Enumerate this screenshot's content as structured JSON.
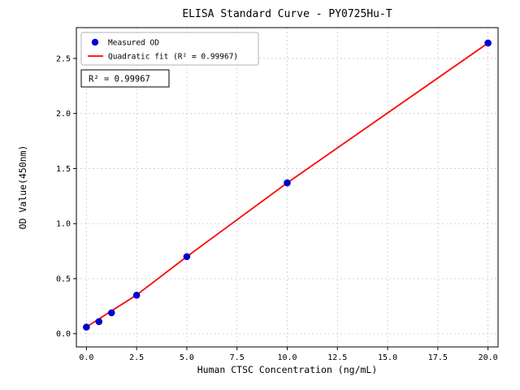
{
  "chart_data": {
    "type": "scatter",
    "title": "ELISA Standard Curve - PY0725Hu-T",
    "xlabel": "Human CTSC Concentration (ng/mL)",
    "ylabel": "OD Value(450nm)",
    "xlim": [
      -0.5,
      20.5
    ],
    "ylim": [
      -0.12,
      2.78
    ],
    "xticks": [
      0.0,
      2.5,
      5.0,
      7.5,
      10.0,
      12.5,
      15.0,
      17.5,
      20.0
    ],
    "yticks": [
      0.0,
      0.5,
      1.0,
      1.5,
      2.0,
      2.5
    ],
    "grid": true,
    "legend_position": "upper-left",
    "annotation": "R² = 0.99967",
    "colors": {
      "measured": "#0000cd",
      "fit": "#ff0000",
      "grid": "#c9c9c9",
      "axis": "#000000",
      "legend_border": "#b3b3b3",
      "background": "#ffffff"
    },
    "series": [
      {
        "name": "Measured OD",
        "type": "scatter",
        "color": "#0000cd",
        "points": [
          [
            0,
            0.06
          ],
          [
            0.625,
            0.11
          ],
          [
            1.25,
            0.19
          ],
          [
            2.5,
            0.35
          ],
          [
            5,
            0.7
          ],
          [
            10,
            1.37
          ],
          [
            20,
            2.64
          ]
        ]
      },
      {
        "name": "Quadratic fit (R² = 0.99967)",
        "type": "line",
        "color": "#ff0000",
        "points": [
          [
            0,
            0.062
          ],
          [
            2.5,
            0.352
          ],
          [
            5,
            0.7
          ],
          [
            10,
            1.37
          ],
          [
            15,
            2.005
          ],
          [
            20,
            2.64
          ]
        ]
      }
    ]
  }
}
